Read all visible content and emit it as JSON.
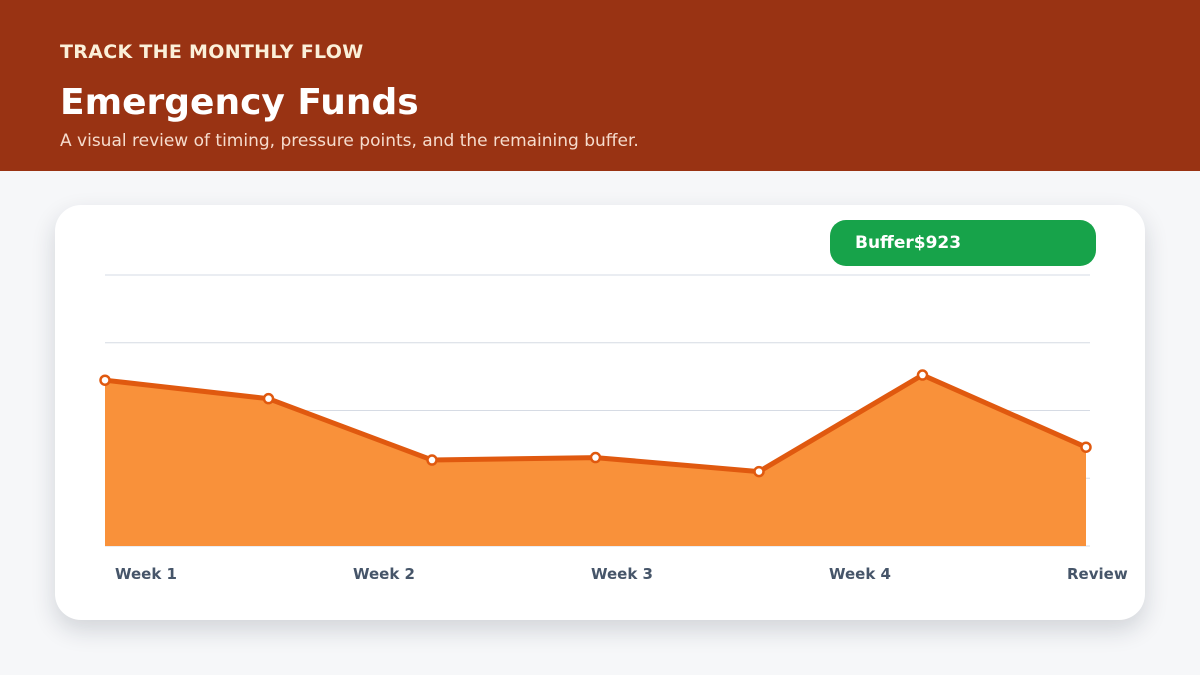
{
  "header": {
    "eyebrow": "TRACK THE MONTHLY FLOW",
    "title": "Emergency Funds",
    "subtitle": "A visual review of timing, pressure points, and the remaining buffer."
  },
  "badge": {
    "label": "Buffer",
    "value": "$923"
  },
  "colors": {
    "header_bg": "#993313",
    "area_fill": "#f9913a",
    "line": "#e0590f",
    "badge": "#17a34a",
    "tick_label": "#465569",
    "grid": "#d6dbe4"
  },
  "chart_data": {
    "type": "area",
    "title": "",
    "xlabel": "",
    "ylabel": "",
    "x_tick_labels": [
      "Week 1",
      "Week 2",
      "Week 3",
      "Week 4",
      "Review"
    ],
    "ylim": [
      0,
      1100
    ],
    "grid": true,
    "series": [
      {
        "values": [
          673,
          598,
          349,
          359,
          302,
          694,
          401
        ]
      }
    ]
  }
}
